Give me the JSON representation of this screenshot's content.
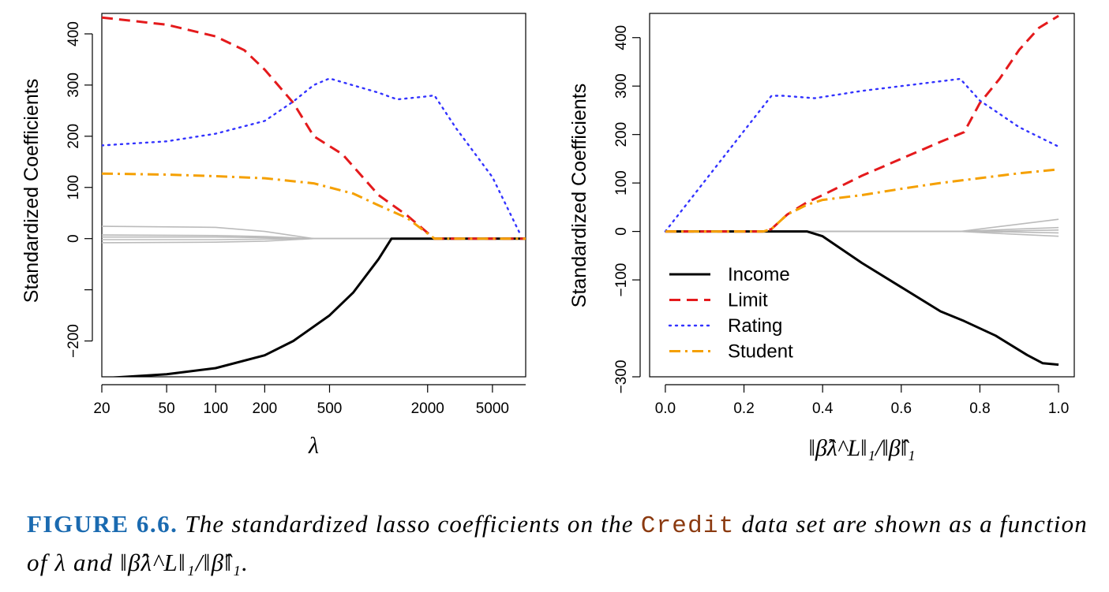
{
  "chart_data": [
    {
      "type": "line",
      "xscale": "log",
      "xlabel": "λ",
      "ylabel": "Standardized Coefficients",
      "xlim": [
        20,
        8000
      ],
      "ylim": [
        -270,
        440
      ],
      "xticks": [
        20,
        50,
        100,
        200,
        500,
        2000,
        5000
      ],
      "xtick_labels": [
        "20",
        "50",
        "100",
        "200",
        "500",
        "2000",
        "5000"
      ],
      "yticks": [
        -200,
        -100,
        0,
        100,
        200,
        300,
        400
      ],
      "ytick_labels": [
        "−200",
        "",
        "0",
        "100",
        "200",
        "300",
        "400"
      ],
      "series": [
        {
          "name": "Income",
          "color": "#000000",
          "style": "solid",
          "x": [
            20,
            50,
            100,
            200,
            300,
            500,
            700,
            1000,
            1200,
            8000
          ],
          "y": [
            -273,
            -265,
            -253,
            -228,
            -200,
            -150,
            -105,
            -40,
            0,
            0
          ]
        },
        {
          "name": "Limit",
          "color": "#e41a1c",
          "style": "dashed",
          "x": [
            20,
            50,
            100,
            150,
            200,
            300,
            400,
            600,
            1000,
            1500,
            2200,
            8000
          ],
          "y": [
            432,
            418,
            395,
            368,
            330,
            265,
            200,
            165,
            85,
            45,
            0,
            0
          ]
        },
        {
          "name": "Rating",
          "color": "#3333ff",
          "style": "dotted",
          "x": [
            20,
            50,
            100,
            200,
            300,
            400,
            500,
            1000,
            1300,
            2000,
            2200,
            3000,
            5000,
            7500
          ],
          "y": [
            182,
            190,
            205,
            230,
            268,
            300,
            313,
            285,
            272,
            278,
            280,
            215,
            120,
            5
          ]
        },
        {
          "name": "Student",
          "color": "#f5a000",
          "style": "dashdot",
          "x": [
            20,
            50,
            100,
            200,
            400,
            700,
            1000,
            1500,
            2200,
            8000
          ],
          "y": [
            127,
            125,
            122,
            118,
            108,
            88,
            65,
            40,
            0,
            0
          ]
        },
        {
          "name": "",
          "color": "#bbbbbb",
          "style": "solid",
          "x": [
            20,
            100,
            200,
            400,
            8000
          ],
          "y": [
            24,
            22,
            14,
            0,
            0
          ]
        },
        {
          "name": "",
          "color": "#bbbbbb",
          "style": "solid",
          "x": [
            20,
            100,
            200,
            400,
            8000
          ],
          "y": [
            7,
            6,
            4,
            0,
            0
          ]
        },
        {
          "name": "",
          "color": "#bbbbbb",
          "style": "solid",
          "x": [
            20,
            100,
            200,
            400,
            8000
          ],
          "y": [
            3,
            3,
            2,
            0,
            0
          ]
        },
        {
          "name": "",
          "color": "#bbbbbb",
          "style": "solid",
          "x": [
            20,
            100,
            200,
            400,
            8000
          ],
          "y": [
            -2,
            -2,
            -1,
            0,
            0
          ]
        },
        {
          "name": "",
          "color": "#bbbbbb",
          "style": "solid",
          "x": [
            20,
            100,
            200,
            400,
            8000
          ],
          "y": [
            -8,
            -7,
            -5,
            0,
            0
          ]
        }
      ]
    },
    {
      "type": "line",
      "xscale": "linear",
      "xlabel": "‖β̂λ^L‖₁/‖β̂‖₁",
      "ylabel": "Standardized Coefficients",
      "xlim": [
        -0.04,
        1.04
      ],
      "ylim": [
        -300,
        450
      ],
      "xticks": [
        0.0,
        0.2,
        0.4,
        0.6,
        0.8,
        1.0
      ],
      "xtick_labels": [
        "0.0",
        "0.2",
        "0.4",
        "0.6",
        "0.8",
        "1.0"
      ],
      "yticks": [
        -300,
        -100,
        0,
        100,
        200,
        300,
        400
      ],
      "ytick_labels": [
        "−300",
        "−100",
        "0",
        "100",
        "200",
        "300",
        "400"
      ],
      "legend": {
        "position": "bottom-left",
        "entries": [
          "Income",
          "Limit",
          "Rating",
          "Student"
        ]
      },
      "series": [
        {
          "name": "Income",
          "color": "#000000",
          "style": "solid",
          "x": [
            0,
            0.36,
            0.4,
            0.5,
            0.6,
            0.7,
            0.76,
            0.84,
            0.92,
            0.96,
            1.0
          ],
          "y": [
            0,
            0,
            -10,
            -65,
            -115,
            -165,
            -185,
            -215,
            -255,
            -272,
            -275
          ]
        },
        {
          "name": "Limit",
          "color": "#e41a1c",
          "style": "dashed",
          "x": [
            0,
            0.25,
            0.27,
            0.31,
            0.36,
            0.4,
            0.5,
            0.6,
            0.7,
            0.76,
            0.8,
            0.85,
            0.9,
            0.95,
            1.0
          ],
          "y": [
            0,
            0,
            5,
            35,
            60,
            75,
            115,
            150,
            185,
            205,
            265,
            315,
            375,
            420,
            445
          ]
        },
        {
          "name": "Rating",
          "color": "#3333ff",
          "style": "dotted",
          "x": [
            0,
            0.27,
            0.3,
            0.38,
            0.5,
            0.6,
            0.7,
            0.75,
            0.8,
            0.9,
            1.0
          ],
          "y": [
            0,
            280,
            280,
            275,
            290,
            300,
            310,
            315,
            270,
            215,
            175
          ]
        },
        {
          "name": "Student",
          "color": "#f5a000",
          "style": "dashdot",
          "x": [
            0,
            0.25,
            0.27,
            0.31,
            0.36,
            0.4,
            0.5,
            0.6,
            0.7,
            0.8,
            0.9,
            1.0
          ],
          "y": [
            0,
            0,
            5,
            35,
            55,
            65,
            75,
            88,
            100,
            110,
            120,
            128
          ]
        },
        {
          "name": "",
          "color": "#bbbbbb",
          "style": "solid",
          "x": [
            0,
            0.75,
            0.87,
            1.0
          ],
          "y": [
            0,
            0,
            12,
            25
          ]
        },
        {
          "name": "",
          "color": "#bbbbbb",
          "style": "solid",
          "x": [
            0,
            0.75,
            0.87,
            1.0
          ],
          "y": [
            0,
            0,
            4,
            8
          ]
        },
        {
          "name": "",
          "color": "#bbbbbb",
          "style": "solid",
          "x": [
            0,
            0.75,
            0.87,
            1.0
          ],
          "y": [
            0,
            0,
            1,
            3
          ]
        },
        {
          "name": "",
          "color": "#bbbbbb",
          "style": "solid",
          "x": [
            0,
            0.75,
            0.87,
            1.0
          ],
          "y": [
            0,
            0,
            -1,
            -3
          ]
        },
        {
          "name": "",
          "color": "#bbbbbb",
          "style": "solid",
          "x": [
            0,
            0.75,
            0.87,
            1.0
          ],
          "y": [
            0,
            0,
            -5,
            -10
          ]
        }
      ]
    }
  ],
  "caption": {
    "label": "FIGURE 6.6.",
    "text_1": " The standardized lasso coefficients on the ",
    "code": "Credit",
    "text_2": " data set are shown as a function of λ and ‖β̂λ^L‖₁/‖β̂‖₁."
  }
}
